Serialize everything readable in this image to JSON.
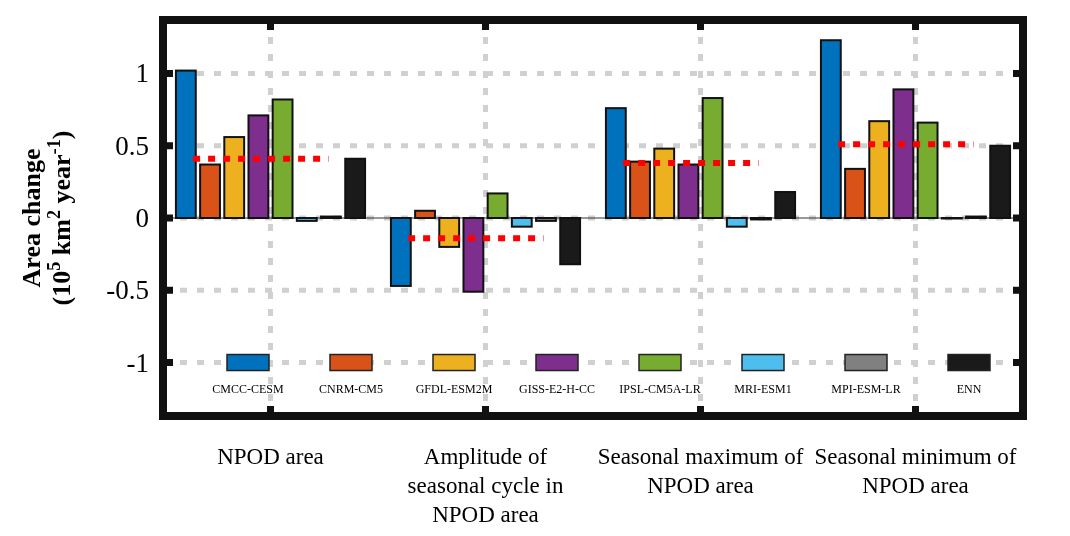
{
  "chart_data": {
    "type": "bar",
    "ylabel": "Area change (10$^{5}$ km$^{2}$ year$^{-1}$)",
    "categories": [
      "NPOD area",
      "Amplitude of seasonal cycle in NPOD area",
      "Seasonal maximum of NPOD area",
      "Seasonal minimum of NPOD area"
    ],
    "series": [
      {
        "name": "CMCC-CESM",
        "color": "#0072bd",
        "values": [
          1.02,
          -0.47,
          0.76,
          1.23
        ]
      },
      {
        "name": "CNRM-CM5",
        "color": "#d95319",
        "values": [
          0.37,
          0.05,
          0.39,
          0.34
        ]
      },
      {
        "name": "GFDL-ESM2M",
        "color": "#edb120",
        "values": [
          0.56,
          -0.2,
          0.48,
          0.67
        ]
      },
      {
        "name": "GISS-E2-H-CC",
        "color": "#7e2f8e",
        "values": [
          0.71,
          -0.51,
          0.37,
          0.89
        ]
      },
      {
        "name": "IPSL-CM5A-LR",
        "color": "#77ac30",
        "values": [
          0.82,
          0.17,
          0.83,
          0.66
        ]
      },
      {
        "name": "MRI-ESM1",
        "color": "#4dbeee",
        "values": [
          -0.02,
          -0.06,
          -0.06,
          0
        ]
      },
      {
        "name": "MPI-ESM-LR",
        "color": "#808080",
        "values": [
          0.01,
          -0.02,
          -0.01,
          0.01
        ]
      },
      {
        "name": "ENN",
        "color": "#1a1a1a",
        "values": [
          0.41,
          -0.32,
          0.18,
          0.5
        ]
      }
    ],
    "ref_lines": [
      {
        "axis": "y",
        "value": 0.41,
        "color": "#ff0000",
        "line_style": "dotted"
      },
      {
        "axis": "y",
        "value": -0.14,
        "color": "#ff0000",
        "line_style": "dotted"
      },
      {
        "axis": "y",
        "value": 0.38,
        "color": "#ff0000",
        "line_style": "dotted"
      },
      {
        "axis": "y",
        "value": 0.51,
        "color": "#ff0000",
        "line_style": "dotted"
      }
    ],
    "ylim": [
      -1.37,
      1.37
    ],
    "yticks": [
      -1,
      -0.5,
      0,
      0.5,
      1
    ],
    "grid": true,
    "legend": "bottom"
  }
}
